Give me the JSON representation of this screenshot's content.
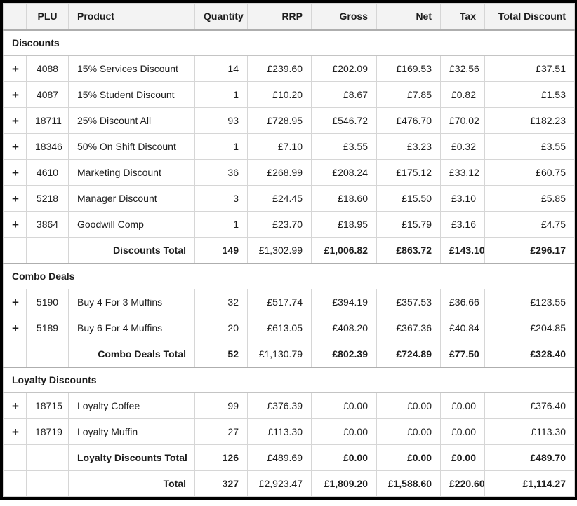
{
  "colors": {
    "outer_border": "#000000",
    "header_bg": "#f3f3f3",
    "grid_line": "#d6d6d6",
    "strong_line": "#aeaeae",
    "text": "#1d1d1d",
    "row_bg": "#ffffff"
  },
  "table": {
    "expand_icon": "+",
    "columns": [
      {
        "key": "expand",
        "label": ""
      },
      {
        "key": "plu",
        "label": "PLU"
      },
      {
        "key": "product",
        "label": "Product"
      },
      {
        "key": "quantity",
        "label": "Quantity"
      },
      {
        "key": "rrp",
        "label": "RRP"
      },
      {
        "key": "gross",
        "label": "Gross"
      },
      {
        "key": "net",
        "label": "Net"
      },
      {
        "key": "tax",
        "label": "Tax"
      },
      {
        "key": "total_discount",
        "label": "Total Discount"
      }
    ],
    "sections": [
      {
        "title": "Discounts",
        "rows": [
          {
            "plu": "4088",
            "product": "15% Services Discount",
            "quantity": "14",
            "rrp": "£239.60",
            "gross": "£202.09",
            "net": "£169.53",
            "tax": "£32.56",
            "total_discount": "£37.51"
          },
          {
            "plu": "4087",
            "product": "15% Student Discount",
            "quantity": "1",
            "rrp": "£10.20",
            "gross": "£8.67",
            "net": "£7.85",
            "tax": "£0.82",
            "total_discount": "£1.53"
          },
          {
            "plu": "18711",
            "product": "25% Discount All",
            "quantity": "93",
            "rrp": "£728.95",
            "gross": "£546.72",
            "net": "£476.70",
            "tax": "£70.02",
            "total_discount": "£182.23"
          },
          {
            "plu": "18346",
            "product": "50% On Shift Discount",
            "quantity": "1",
            "rrp": "£7.10",
            "gross": "£3.55",
            "net": "£3.23",
            "tax": "£0.32",
            "total_discount": "£3.55"
          },
          {
            "plu": "4610",
            "product": "Marketing Discount",
            "quantity": "36",
            "rrp": "£268.99",
            "gross": "£208.24",
            "net": "£175.12",
            "tax": "£33.12",
            "total_discount": "£60.75"
          },
          {
            "plu": "5218",
            "product": "Manager Discount",
            "quantity": "3",
            "rrp": "£24.45",
            "gross": "£18.60",
            "net": "£15.50",
            "tax": "£3.10",
            "total_discount": "£5.85"
          },
          {
            "plu": "3864",
            "product": "Goodwill Comp",
            "quantity": "1",
            "rrp": "£23.70",
            "gross": "£18.95",
            "net": "£15.79",
            "tax": "£3.16",
            "total_discount": "£4.75"
          }
        ],
        "total": {
          "label": "Discounts Total",
          "quantity": "149",
          "rrp": "£1,302.99",
          "gross": "£1,006.82",
          "net": "£863.72",
          "tax": "£143.10",
          "total_discount": "£296.17"
        }
      },
      {
        "title": "Combo Deals",
        "rows": [
          {
            "plu": "5190",
            "product": "Buy 4 For 3 Muffins",
            "quantity": "32",
            "rrp": "£517.74",
            "gross": "£394.19",
            "net": "£357.53",
            "tax": "£36.66",
            "total_discount": "£123.55"
          },
          {
            "plu": "5189",
            "product": "Buy 6 For 4 Muffins",
            "quantity": "20",
            "rrp": "£613.05",
            "gross": "£408.20",
            "net": "£367.36",
            "tax": "£40.84",
            "total_discount": "£204.85"
          }
        ],
        "total": {
          "label": "Combo Deals Total",
          "quantity": "52",
          "rrp": "£1,130.79",
          "gross": "£802.39",
          "net": "£724.89",
          "tax": "£77.50",
          "total_discount": "£328.40"
        }
      },
      {
        "title": "Loyalty Discounts",
        "rows": [
          {
            "plu": "18715",
            "product": "Loyalty Coffee",
            "quantity": "99",
            "rrp": "£376.39",
            "gross": "£0.00",
            "net": "£0.00",
            "tax": "£0.00",
            "total_discount": "£376.40"
          },
          {
            "plu": "18719",
            "product": "Loyalty Muffin",
            "quantity": "27",
            "rrp": "£113.30",
            "gross": "£0.00",
            "net": "£0.00",
            "tax": "£0.00",
            "total_discount": "£113.30"
          }
        ],
        "total": {
          "label": "Loyalty Discounts Total",
          "quantity": "126",
          "rrp": "£489.69",
          "gross": "£0.00",
          "net": "£0.00",
          "tax": "£0.00",
          "total_discount": "£489.70"
        }
      }
    ],
    "grand_total": {
      "label": "Total",
      "quantity": "327",
      "rrp": "£2,923.47",
      "gross": "£1,809.20",
      "net": "£1,588.60",
      "tax": "£220.60",
      "total_discount": "£1,114.27"
    }
  }
}
